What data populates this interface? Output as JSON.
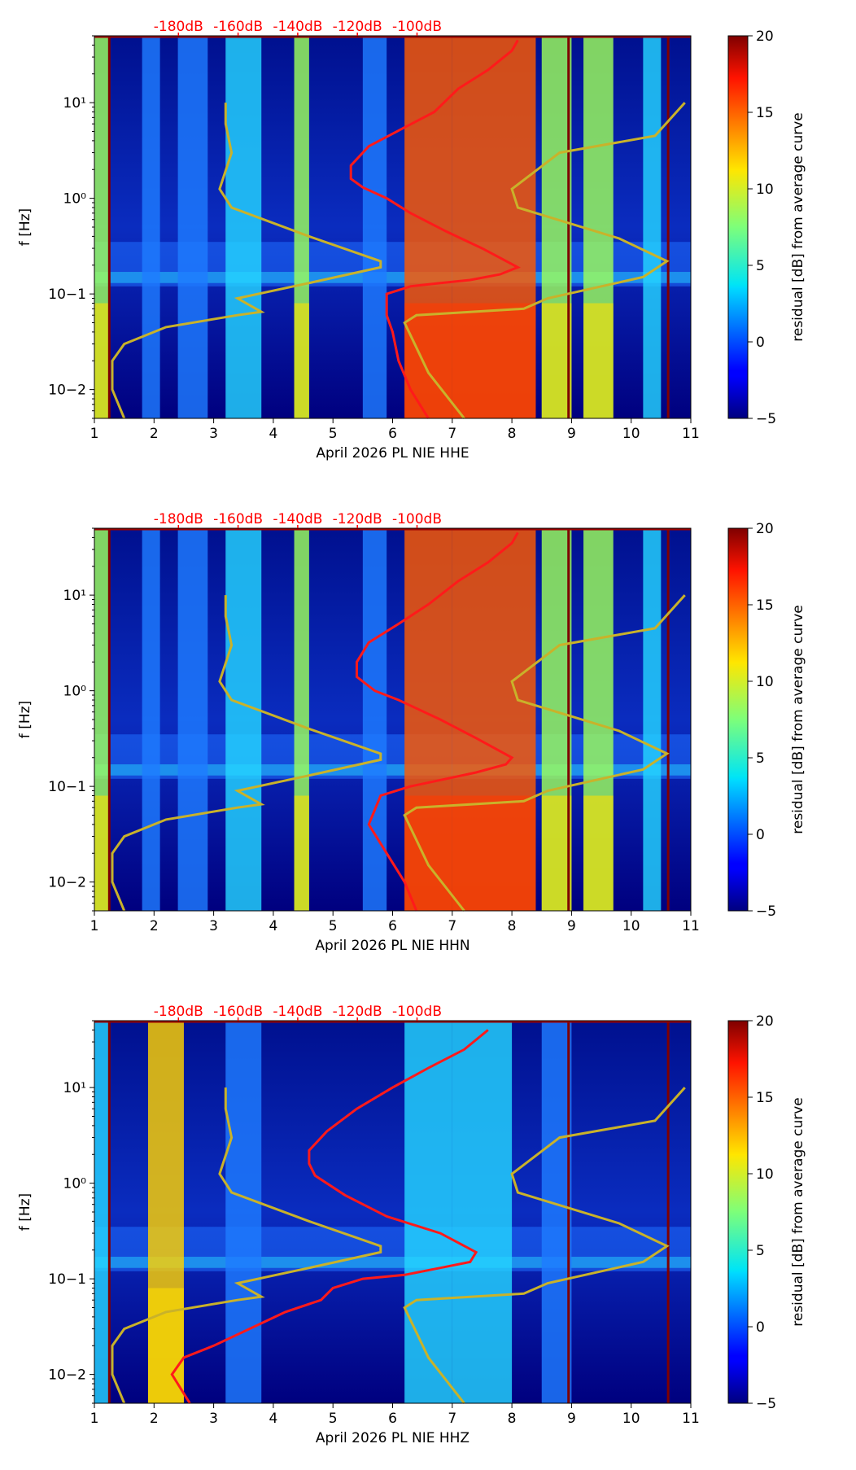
{
  "figure": {
    "background": "#ffffff",
    "accent_top_ticks": "#ff0000"
  },
  "chart_data": [
    {
      "type": "heatmap",
      "title": "",
      "xlabel": "April 2026 PL NIE  HHE",
      "ylabel": "f [Hz]",
      "xlim": [
        1,
        11
      ],
      "ylim": [
        0.005,
        50
      ],
      "yscale": "log",
      "x_ticks": [
        "1",
        "2",
        "3",
        "4",
        "5",
        "6",
        "7",
        "8",
        "9",
        "10",
        "11"
      ],
      "y_ticks": [
        {
          "v": 0.01,
          "label": "10−2"
        },
        {
          "v": 0.1,
          "label": "10−1"
        },
        {
          "v": 1,
          "label": "10⁰"
        },
        {
          "v": 10,
          "label": "10¹"
        }
      ],
      "top_ticks": [
        {
          "x": 2.0,
          "label": "-180dB"
        },
        {
          "x": 3.0,
          "label": "-160dB"
        },
        {
          "x": 4.0,
          "label": "-140dB"
        },
        {
          "x": 5.0,
          "label": "-120dB"
        },
        {
          "x": 6.0,
          "label": "-100dB"
        }
      ],
      "colorbar": {
        "label": "residual [dB] from average curve",
        "min": -5,
        "max": 20,
        "ticks": [
          "20",
          "15",
          "10",
          "5",
          "0",
          "−5"
        ]
      },
      "band_columns": [
        {
          "x1": 1.0,
          "x2": 1.25,
          "level": 3
        },
        {
          "x1": 1.8,
          "x2": 2.1,
          "level": 1
        },
        {
          "x1": 2.4,
          "x2": 2.9,
          "level": 1
        },
        {
          "x1": 3.2,
          "x2": 3.8,
          "level": 2
        },
        {
          "x1": 4.35,
          "x2": 4.6,
          "level": 3
        },
        {
          "x1": 5.5,
          "x2": 5.9,
          "level": 1
        },
        {
          "x1": 6.2,
          "x2": 7.0,
          "level": 5
        },
        {
          "x1": 7.0,
          "x2": 8.4,
          "level": 5
        },
        {
          "x1": 8.5,
          "x2": 9.0,
          "level": 3
        },
        {
          "x1": 9.2,
          "x2": 9.7,
          "level": 3
        },
        {
          "x1": 10.2,
          "x2": 10.5,
          "level": 2
        }
      ],
      "red_curve": {
        "x": [
          6.6,
          6.3,
          6.1,
          6.0,
          5.9,
          5.9,
          6.3,
          6.8,
          7.3,
          7.8,
          8.1,
          7.5,
          6.9,
          6.3,
          5.9,
          5.5,
          5.3,
          5.3,
          5.6,
          6.2,
          6.7,
          7.1,
          7.6,
          8.0,
          8.1
        ],
        "y": [
          0.005,
          0.01,
          0.02,
          0.04,
          0.06,
          0.1,
          0.12,
          0.13,
          0.14,
          0.16,
          0.19,
          0.3,
          0.45,
          0.7,
          1.0,
          1.3,
          1.6,
          2.2,
          3.5,
          5.5,
          8,
          14,
          22,
          35,
          45
        ]
      },
      "yellow_curves": [
        {
          "x": [
            1.5,
            1.3,
            1.3,
            1.5,
            2.2,
            3.4,
            3.8,
            3.4,
            4.6,
            5.8,
            5.8,
            4.6,
            3.3,
            3.1,
            3.3,
            3.2,
            3.2
          ],
          "y": [
            0.005,
            0.01,
            0.02,
            0.03,
            0.045,
            0.06,
            0.065,
            0.09,
            0.13,
            0.19,
            0.22,
            0.4,
            0.8,
            1.25,
            3.0,
            6.0,
            10
          ]
        },
        {
          "x": [
            7.2,
            6.6,
            6.2,
            6.4,
            8.2,
            8.6,
            10.2,
            10.6,
            9.8,
            8.1,
            8.0,
            8.8,
            10.4,
            10.9
          ],
          "y": [
            0.005,
            0.015,
            0.05,
            0.06,
            0.07,
            0.09,
            0.15,
            0.22,
            0.38,
            0.8,
            1.25,
            3.0,
            4.5,
            10
          ]
        }
      ]
    },
    {
      "type": "heatmap",
      "title": "",
      "xlabel": "April 2026 PL NIE  HHN",
      "ylabel": "f [Hz]",
      "xlim": [
        1,
        11
      ],
      "ylim": [
        0.005,
        50
      ],
      "yscale": "log",
      "x_ticks": [
        "1",
        "2",
        "3",
        "4",
        "5",
        "6",
        "7",
        "8",
        "9",
        "10",
        "11"
      ],
      "y_ticks": [
        {
          "v": 0.01,
          "label": "10−2"
        },
        {
          "v": 0.1,
          "label": "10−1"
        },
        {
          "v": 1,
          "label": "10⁰"
        },
        {
          "v": 10,
          "label": "10¹"
        }
      ],
      "top_ticks": [
        {
          "x": 2.0,
          "label": "-180dB"
        },
        {
          "x": 3.0,
          "label": "-160dB"
        },
        {
          "x": 4.0,
          "label": "-140dB"
        },
        {
          "x": 5.0,
          "label": "-120dB"
        },
        {
          "x": 6.0,
          "label": "-100dB"
        }
      ],
      "colorbar": {
        "label": "residual [dB] from average curve",
        "min": -5,
        "max": 20,
        "ticks": [
          "20",
          "15",
          "10",
          "5",
          "0",
          "−5"
        ]
      },
      "band_columns": [
        {
          "x1": 1.0,
          "x2": 1.25,
          "level": 3
        },
        {
          "x1": 1.8,
          "x2": 2.1,
          "level": 1
        },
        {
          "x1": 2.4,
          "x2": 2.9,
          "level": 1
        },
        {
          "x1": 3.2,
          "x2": 3.8,
          "level": 2
        },
        {
          "x1": 4.35,
          "x2": 4.6,
          "level": 3
        },
        {
          "x1": 5.5,
          "x2": 5.9,
          "level": 1
        },
        {
          "x1": 6.2,
          "x2": 7.0,
          "level": 5
        },
        {
          "x1": 7.0,
          "x2": 8.4,
          "level": 5
        },
        {
          "x1": 8.5,
          "x2": 9.0,
          "level": 3
        },
        {
          "x1": 9.2,
          "x2": 9.7,
          "level": 3
        },
        {
          "x1": 10.2,
          "x2": 10.5,
          "level": 2
        }
      ],
      "red_curve": {
        "x": [
          6.4,
          6.2,
          5.9,
          5.6,
          5.8,
          6.3,
          6.9,
          7.4,
          7.9,
          8.0,
          7.4,
          6.8,
          6.1,
          5.7,
          5.4,
          5.4,
          5.6,
          6.1,
          6.6,
          7.1,
          7.6,
          8.0,
          8.1
        ],
        "y": [
          0.005,
          0.01,
          0.02,
          0.04,
          0.08,
          0.1,
          0.12,
          0.14,
          0.17,
          0.2,
          0.32,
          0.5,
          0.8,
          1.0,
          1.4,
          2.0,
          3.2,
          5.0,
          8,
          14,
          22,
          35,
          45
        ]
      },
      "yellow_curves": [
        {
          "x": [
            1.5,
            1.3,
            1.3,
            1.5,
            2.2,
            3.4,
            3.8,
            3.4,
            4.6,
            5.8,
            5.8,
            4.6,
            3.3,
            3.1,
            3.3,
            3.2,
            3.2
          ],
          "y": [
            0.005,
            0.01,
            0.02,
            0.03,
            0.045,
            0.06,
            0.065,
            0.09,
            0.13,
            0.19,
            0.22,
            0.4,
            0.8,
            1.25,
            3.0,
            6.0,
            10
          ]
        },
        {
          "x": [
            7.2,
            6.6,
            6.2,
            6.4,
            8.2,
            8.6,
            10.2,
            10.6,
            9.8,
            8.1,
            8.0,
            8.8,
            10.4,
            10.9
          ],
          "y": [
            0.005,
            0.015,
            0.05,
            0.06,
            0.07,
            0.09,
            0.15,
            0.22,
            0.38,
            0.8,
            1.25,
            3.0,
            4.5,
            10
          ]
        }
      ]
    },
    {
      "type": "heatmap",
      "title": "",
      "xlabel": "April 2026 PL NIE  HHZ",
      "ylabel": "f [Hz]",
      "xlim": [
        1,
        11
      ],
      "ylim": [
        0.005,
        50
      ],
      "yscale": "log",
      "x_ticks": [
        "1",
        "2",
        "3",
        "4",
        "5",
        "6",
        "7",
        "8",
        "9",
        "10",
        "11"
      ],
      "y_ticks": [
        {
          "v": 0.01,
          "label": "10−2"
        },
        {
          "v": 0.1,
          "label": "10−1"
        },
        {
          "v": 1,
          "label": "10⁰"
        },
        {
          "v": 10,
          "label": "10¹"
        }
      ],
      "top_ticks": [
        {
          "x": 2.0,
          "label": "-180dB"
        },
        {
          "x": 3.0,
          "label": "-160dB"
        },
        {
          "x": 4.0,
          "label": "-140dB"
        },
        {
          "x": 5.0,
          "label": "-120dB"
        },
        {
          "x": 6.0,
          "label": "-100dB"
        }
      ],
      "colorbar": {
        "label": "residual [dB] from average curve",
        "min": -5,
        "max": 20,
        "ticks": [
          "20",
          "15",
          "10",
          "5",
          "0",
          "−5"
        ]
      },
      "band_columns": [
        {
          "x1": 1.0,
          "x2": 1.25,
          "level": 2
        },
        {
          "x1": 1.9,
          "x2": 2.5,
          "level": 4
        },
        {
          "x1": 3.2,
          "x2": 3.8,
          "level": 1
        },
        {
          "x1": 6.2,
          "x2": 7.0,
          "level": 2
        },
        {
          "x1": 7.0,
          "x2": 8.0,
          "level": 2
        },
        {
          "x1": 8.5,
          "x2": 9.0,
          "level": 1
        }
      ],
      "red_curve": {
        "x": [
          2.6,
          2.3,
          2.5,
          3.0,
          3.6,
          4.2,
          4.8,
          5.0,
          5.5,
          6.2,
          6.8,
          7.3,
          7.4,
          6.8,
          5.9,
          5.2,
          4.7,
          4.6,
          4.6,
          4.9,
          5.4,
          6.0,
          6.6,
          7.2,
          7.6
        ],
        "y": [
          0.005,
          0.01,
          0.015,
          0.02,
          0.03,
          0.045,
          0.06,
          0.08,
          0.1,
          0.11,
          0.13,
          0.15,
          0.19,
          0.3,
          0.45,
          0.75,
          1.2,
          1.6,
          2.2,
          3.5,
          6,
          10,
          16,
          25,
          40
        ]
      },
      "yellow_curves": [
        {
          "x": [
            1.5,
            1.3,
            1.3,
            1.5,
            2.2,
            3.4,
            3.8,
            3.4,
            4.6,
            5.8,
            5.8,
            4.6,
            3.3,
            3.1,
            3.3,
            3.2,
            3.2
          ],
          "y": [
            0.005,
            0.01,
            0.02,
            0.03,
            0.045,
            0.06,
            0.065,
            0.09,
            0.13,
            0.19,
            0.22,
            0.4,
            0.8,
            1.25,
            3.0,
            6.0,
            10
          ]
        },
        {
          "x": [
            7.2,
            6.6,
            6.2,
            6.4,
            8.2,
            8.6,
            10.2,
            10.6,
            9.8,
            8.1,
            8.0,
            8.8,
            10.4,
            10.9
          ],
          "y": [
            0.005,
            0.015,
            0.05,
            0.06,
            0.07,
            0.09,
            0.15,
            0.22,
            0.38,
            0.8,
            1.25,
            3.0,
            4.5,
            10
          ]
        }
      ]
    }
  ]
}
